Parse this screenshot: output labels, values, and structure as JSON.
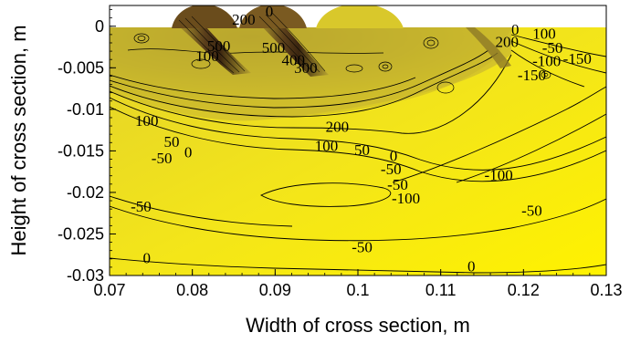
{
  "chart_data": {
    "type": "contour",
    "xlabel": "Width of cross section, m",
    "ylabel": "Height of cross section, m",
    "xlim": [
      0.07,
      0.13
    ],
    "ylim": [
      -0.03,
      0.0025
    ],
    "x_ticks": [
      "0.07",
      "0.08",
      "0.09",
      "0.1",
      "0.11",
      "0.12",
      "0.13"
    ],
    "y_ticks": [
      "0",
      "-0.005",
      "-0.01",
      "-0.015",
      "-0.02",
      "-0.025",
      "-0.03"
    ],
    "grid": false,
    "legend": "none",
    "colors": {
      "low": "#fff200",
      "mid": "#c9b82a",
      "high": "#3a2510",
      "line": "#000000"
    },
    "contour_levels": [
      {
        "text": "0",
        "x": 0.0745,
        "y": -0.0285
      },
      {
        "text": "-50",
        "x": 0.0738,
        "y": -0.0223
      },
      {
        "text": "-50",
        "x": 0.0763,
        "y": -0.0165
      },
      {
        "text": "0",
        "x": 0.0795,
        "y": -0.0158
      },
      {
        "text": "50",
        "x": 0.0775,
        "y": -0.0145
      },
      {
        "text": "100",
        "x": 0.0745,
        "y": -0.012
      },
      {
        "text": "200",
        "x": 0.0975,
        "y": -0.0127
      },
      {
        "text": "100",
        "x": 0.0962,
        "y": -0.015
      },
      {
        "text": "50",
        "x": 0.1005,
        "y": -0.0155
      },
      {
        "text": "0",
        "x": 0.1043,
        "y": -0.0162
      },
      {
        "text": "-50",
        "x": 0.104,
        "y": -0.0178
      },
      {
        "text": "-50",
        "x": 0.1048,
        "y": -0.0197
      },
      {
        "text": "-100",
        "x": 0.1058,
        "y": -0.0213
      },
      {
        "text": "-50",
        "x": 0.1005,
        "y": -0.0272
      },
      {
        "text": "0",
        "x": 0.1137,
        "y": -0.0295
      },
      {
        "text": "-100",
        "x": 0.117,
        "y": -0.0185
      },
      {
        "text": "-50",
        "x": 0.121,
        "y": -0.0228
      },
      {
        "text": "-150",
        "x": 0.1265,
        "y": -0.0045
      },
      {
        "text": "-150",
        "x": 0.121,
        "y": -0.0065
      },
      {
        "text": "200",
        "x": 0.118,
        "y": -0.0025
      },
      {
        "text": "0",
        "x": 0.119,
        "y": -0.001
      },
      {
        "text": "100",
        "x": 0.1225,
        "y": -0.0015
      },
      {
        "text": "-50",
        "x": 0.1235,
        "y": -0.0032
      },
      {
        "text": "-100",
        "x": 0.1228,
        "y": -0.0048
      },
      {
        "text": "200",
        "x": 0.0862,
        "y": 0.0002
      },
      {
        "text": "0",
        "x": 0.0893,
        "y": 0.0012
      },
      {
        "text": "500",
        "x": 0.0832,
        "y": -0.003
      },
      {
        "text": "100",
        "x": 0.0818,
        "y": -0.0042
      },
      {
        "text": "500",
        "x": 0.0898,
        "y": -0.0032
      },
      {
        "text": "400",
        "x": 0.0922,
        "y": -0.0047
      },
      {
        "text": "300",
        "x": 0.0937,
        "y": -0.0056
      }
    ]
  }
}
